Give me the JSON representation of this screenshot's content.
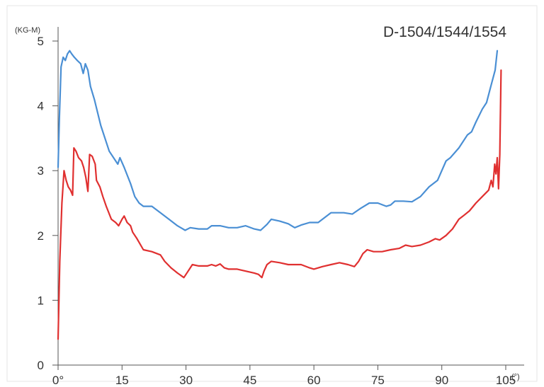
{
  "chart_data": {
    "type": "line",
    "title": "D-1504/1544/1554",
    "ylabel": "(KG-M)",
    "xunit": "(°)",
    "xlim": [
      0,
      105
    ],
    "ylim": [
      0,
      5
    ],
    "x_ticks": [
      0,
      15,
      30,
      45,
      60,
      75,
      90,
      105
    ],
    "x_tick_labels": [
      "0°",
      "15",
      "30",
      "45",
      "60",
      "75",
      "90",
      "105"
    ],
    "y_ticks": [
      0,
      1,
      2,
      3,
      4,
      5
    ],
    "y_tick_labels": [
      "0",
      "1",
      "2",
      "3",
      "4",
      "5"
    ],
    "grid": false,
    "series": [
      {
        "color": "#4a8fd4",
        "points": [
          [
            0,
            3.05
          ],
          [
            0.3,
            3.8
          ],
          [
            0.7,
            4.6
          ],
          [
            1.2,
            4.75
          ],
          [
            1.7,
            4.7
          ],
          [
            2.2,
            4.8
          ],
          [
            2.7,
            4.85
          ],
          [
            3.2,
            4.8
          ],
          [
            3.8,
            4.75
          ],
          [
            4.5,
            4.7
          ],
          [
            5.3,
            4.65
          ],
          [
            5.9,
            4.5
          ],
          [
            6.4,
            4.65
          ],
          [
            7.0,
            4.55
          ],
          [
            7.6,
            4.3
          ],
          [
            8.5,
            4.1
          ],
          [
            10,
            3.7
          ],
          [
            12,
            3.3
          ],
          [
            14,
            3.1
          ],
          [
            14.5,
            3.2
          ],
          [
            15.5,
            3.05
          ],
          [
            17,
            2.8
          ],
          [
            18,
            2.6
          ],
          [
            19,
            2.5
          ],
          [
            20,
            2.45
          ],
          [
            22,
            2.45
          ],
          [
            24,
            2.35
          ],
          [
            26,
            2.25
          ],
          [
            28,
            2.15
          ],
          [
            29.8,
            2.08
          ],
          [
            31,
            2.12
          ],
          [
            33,
            2.1
          ],
          [
            35,
            2.1
          ],
          [
            36,
            2.15
          ],
          [
            38,
            2.15
          ],
          [
            40,
            2.12
          ],
          [
            42,
            2.12
          ],
          [
            44,
            2.15
          ],
          [
            46,
            2.1
          ],
          [
            47.5,
            2.08
          ],
          [
            49,
            2.17
          ],
          [
            50,
            2.25
          ],
          [
            52,
            2.22
          ],
          [
            54,
            2.18
          ],
          [
            55.5,
            2.12
          ],
          [
            57,
            2.16
          ],
          [
            59,
            2.2
          ],
          [
            61,
            2.2
          ],
          [
            64,
            2.35
          ],
          [
            67,
            2.35
          ],
          [
            69,
            2.33
          ],
          [
            71,
            2.42
          ],
          [
            73,
            2.5
          ],
          [
            75,
            2.5
          ],
          [
            77,
            2.45
          ],
          [
            78,
            2.47
          ],
          [
            79,
            2.53
          ],
          [
            81,
            2.53
          ],
          [
            83,
            2.52
          ],
          [
            85,
            2.6
          ],
          [
            87,
            2.75
          ],
          [
            89,
            2.85
          ],
          [
            90,
            3.0
          ],
          [
            91,
            3.15
          ],
          [
            92,
            3.2
          ],
          [
            94,
            3.35
          ],
          [
            96,
            3.55
          ],
          [
            97,
            3.6
          ],
          [
            98,
            3.75
          ],
          [
            99.5,
            3.95
          ],
          [
            100.5,
            4.05
          ],
          [
            101.5,
            4.3
          ],
          [
            102.5,
            4.55
          ],
          [
            103,
            4.85
          ]
        ]
      },
      {
        "color": "#e03030",
        "points": [
          [
            0,
            0.4
          ],
          [
            0.4,
            1.6
          ],
          [
            0.9,
            2.5
          ],
          [
            1.4,
            3.0
          ],
          [
            1.9,
            2.85
          ],
          [
            2.4,
            2.75
          ],
          [
            2.9,
            2.7
          ],
          [
            3.4,
            2.62
          ],
          [
            3.7,
            3.35
          ],
          [
            4.2,
            3.3
          ],
          [
            4.8,
            3.2
          ],
          [
            5.5,
            3.15
          ],
          [
            6.0,
            3.05
          ],
          [
            6.5,
            2.9
          ],
          [
            7.0,
            2.68
          ],
          [
            7.4,
            3.25
          ],
          [
            8.0,
            3.22
          ],
          [
            8.7,
            3.1
          ],
          [
            9.0,
            2.85
          ],
          [
            9.8,
            2.75
          ],
          [
            10.5,
            2.6
          ],
          [
            11.3,
            2.45
          ],
          [
            12.5,
            2.25
          ],
          [
            13.5,
            2.2
          ],
          [
            14.2,
            2.15
          ],
          [
            15.0,
            2.25
          ],
          [
            15.5,
            2.3
          ],
          [
            16.2,
            2.2
          ],
          [
            17,
            2.15
          ],
          [
            17.5,
            2.05
          ],
          [
            18.5,
            1.95
          ],
          [
            20,
            1.78
          ],
          [
            22,
            1.75
          ],
          [
            24,
            1.7
          ],
          [
            25,
            1.6
          ],
          [
            26.5,
            1.5
          ],
          [
            28,
            1.42
          ],
          [
            29.5,
            1.35
          ],
          [
            30.5,
            1.45
          ],
          [
            31.5,
            1.55
          ],
          [
            33,
            1.53
          ],
          [
            35,
            1.53
          ],
          [
            36,
            1.55
          ],
          [
            37,
            1.53
          ],
          [
            38,
            1.56
          ],
          [
            39,
            1.5
          ],
          [
            40,
            1.48
          ],
          [
            42,
            1.48
          ],
          [
            44,
            1.45
          ],
          [
            46,
            1.42
          ],
          [
            47,
            1.4
          ],
          [
            47.8,
            1.35
          ],
          [
            48.3,
            1.45
          ],
          [
            49,
            1.55
          ],
          [
            50,
            1.6
          ],
          [
            52,
            1.58
          ],
          [
            54,
            1.55
          ],
          [
            57,
            1.55
          ],
          [
            59,
            1.5
          ],
          [
            60,
            1.48
          ],
          [
            62,
            1.52
          ],
          [
            64,
            1.55
          ],
          [
            66,
            1.58
          ],
          [
            68,
            1.55
          ],
          [
            69.5,
            1.52
          ],
          [
            70.5,
            1.6
          ],
          [
            71.5,
            1.72
          ],
          [
            72.5,
            1.78
          ],
          [
            74,
            1.75
          ],
          [
            76,
            1.75
          ],
          [
            78,
            1.78
          ],
          [
            80,
            1.8
          ],
          [
            81.5,
            1.85
          ],
          [
            83,
            1.83
          ],
          [
            85,
            1.85
          ],
          [
            87,
            1.9
          ],
          [
            88.5,
            1.95
          ],
          [
            89.5,
            1.93
          ],
          [
            91,
            2.0
          ],
          [
            92.5,
            2.1
          ],
          [
            94,
            2.25
          ],
          [
            95,
            2.3
          ],
          [
            96.5,
            2.38
          ],
          [
            98,
            2.5
          ],
          [
            99.5,
            2.6
          ],
          [
            101,
            2.7
          ],
          [
            101.6,
            2.85
          ],
          [
            102,
            2.75
          ],
          [
            102.4,
            3.1
          ],
          [
            102.7,
            2.95
          ],
          [
            103,
            3.2
          ],
          [
            103.3,
            2.72
          ],
          [
            103.6,
            3.25
          ],
          [
            103.9,
            4.55
          ]
        ]
      }
    ]
  }
}
